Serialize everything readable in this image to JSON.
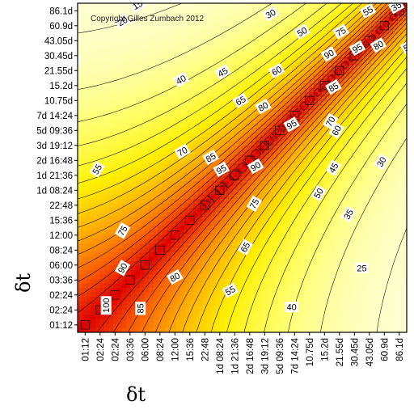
{
  "chart_data": {
    "type": "heatmap",
    "title": "",
    "copyright": "Copyright Gilles Zumbach 2012",
    "xlabel": "δt",
    "ylabel": "δt",
    "x_ticks": [
      "01:12",
      "02:24",
      "02:24",
      "03:36",
      "06:00",
      "08:24",
      "12:00",
      "15:36",
      "22:48",
      "1d 08:24",
      "1d 21:36",
      "2d 16:48",
      "3d 19:12",
      "5d 09:36",
      "7d 14:24",
      "10.75d",
      "15.2d",
      "21.55d",
      "30.45d",
      "43.05d",
      "60.9d",
      "86.1d"
    ],
    "y_ticks": [
      "01:12",
      "02:24",
      "02:24",
      "03:36",
      "06:00",
      "08:24",
      "12:00",
      "15:36",
      "22:48",
      "1d 08:24",
      "1d 21:36",
      "2d 16:48",
      "3d 19:12",
      "5d 09:36",
      "7d 14:24",
      "10.75d",
      "15.2d",
      "21.55d",
      "30.45d",
      "43.05d",
      "60.9d",
      "86.1d"
    ],
    "contour_levels": [
      25,
      30,
      35,
      40,
      45,
      50,
      55,
      60,
      65,
      70,
      75,
      80,
      85,
      90,
      95,
      100
    ],
    "contour_labels": [
      {
        "text": "35",
        "x": 20.8,
        "y": 21.3,
        "rot": -30
      },
      {
        "text": "15",
        "x": 3.5,
        "y": 21.4,
        "rot": -30
      },
      {
        "text": "20",
        "x": 2.5,
        "y": 20.3,
        "rot": -30
      },
      {
        "text": "30",
        "x": 12.4,
        "y": 20.8,
        "rot": -30
      },
      {
        "text": "55",
        "x": 18.9,
        "y": 21.0,
        "rot": -30
      },
      {
        "text": "50",
        "x": 14.5,
        "y": 19.6,
        "rot": -30
      },
      {
        "text": "75",
        "x": 17.1,
        "y": 19.6,
        "rot": -30
      },
      {
        "text": "80",
        "x": 19.6,
        "y": 18.7,
        "rot": -30
      },
      {
        "text": "55",
        "x": 21.6,
        "y": 18.6,
        "rot": -30
      },
      {
        "text": "25",
        "x": -0.8,
        "y": 17.7,
        "rot": 0
      },
      {
        "text": "40",
        "x": 6.4,
        "y": 16.4,
        "rot": -30
      },
      {
        "text": "45",
        "x": 9.2,
        "y": 16.9,
        "rot": -30
      },
      {
        "text": "60",
        "x": 12.8,
        "y": 17.0,
        "rot": -30
      },
      {
        "text": "90",
        "x": 16.3,
        "y": 18.1,
        "rot": -30
      },
      {
        "text": "95",
        "x": 18.2,
        "y": 18.5,
        "rot": -30
      },
      {
        "text": "85",
        "x": 16.6,
        "y": 15.9,
        "rot": -30
      },
      {
        "text": "65",
        "x": 10.4,
        "y": 15.0,
        "rot": -30
      },
      {
        "text": "80",
        "x": 11.9,
        "y": 14.6,
        "rot": -30
      },
      {
        "text": "70",
        "x": 16.4,
        "y": 13.6,
        "rot": -60
      },
      {
        "text": "60",
        "x": 16.8,
        "y": 13.0,
        "rot": -60
      },
      {
        "text": "95",
        "x": 13.8,
        "y": 13.4,
        "rot": -30
      },
      {
        "text": "70",
        "x": 6.5,
        "y": 11.6,
        "rot": -30
      },
      {
        "text": "85",
        "x": 8.4,
        "y": 11.2,
        "rot": -30
      },
      {
        "text": "95",
        "x": 9.1,
        "y": 10.4,
        "rot": -30
      },
      {
        "text": "90",
        "x": 11.4,
        "y": 10.6,
        "rot": -30
      },
      {
        "text": "45",
        "x": 16.6,
        "y": 10.5,
        "rot": -60
      },
      {
        "text": "30",
        "x": 19.8,
        "y": 10.9,
        "rot": -60
      },
      {
        "text": "55",
        "x": 0.8,
        "y": 10.4,
        "rot": -60
      },
      {
        "text": "50",
        "x": 15.6,
        "y": 8.8,
        "rot": -60
      },
      {
        "text": "75",
        "x": 11.3,
        "y": 8.1,
        "rot": -60
      },
      {
        "text": "35",
        "x": 17.6,
        "y": 7.4,
        "rot": -60
      },
      {
        "text": "75",
        "x": 2.5,
        "y": 6.3,
        "rot": -60
      },
      {
        "text": "65",
        "x": 10.7,
        "y": 5.2,
        "rot": -60
      },
      {
        "text": "90",
        "x": 2.5,
        "y": 3.8,
        "rot": -60
      },
      {
        "text": "25",
        "x": 18.5,
        "y": 3.8,
        "rot": 0
      },
      {
        "text": "80",
        "x": 6.0,
        "y": 3.2,
        "rot": -30
      },
      {
        "text": "55",
        "x": 9.7,
        "y": 2.3,
        "rot": -30
      },
      {
        "text": "100",
        "x": 1.4,
        "y": 1.3,
        "rot": -90
      },
      {
        "text": "85",
        "x": 3.7,
        "y": 1.1,
        "rot": -90
      },
      {
        "text": "40",
        "x": 13.8,
        "y": 1.2,
        "rot": 0
      }
    ]
  }
}
